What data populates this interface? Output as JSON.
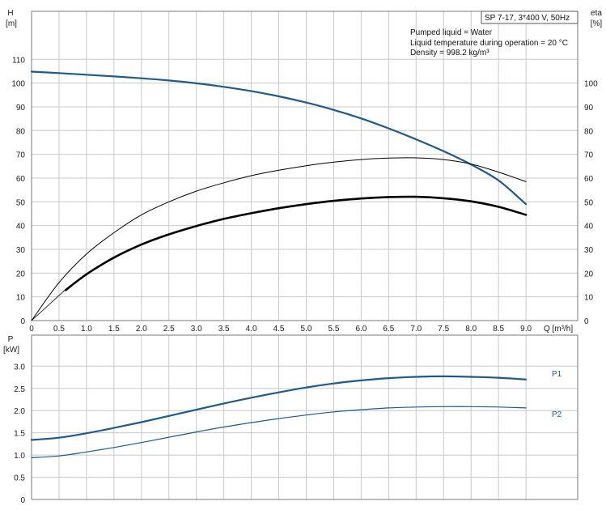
{
  "header": {
    "title": "SP 7-17, 3*400 V, 50Hz",
    "conditions": [
      "Pumped liquid = Water",
      "Liquid temperature during operation = 20 °C",
      "Density = 998.2 kg/m³"
    ]
  },
  "colors": {
    "head_curve": "#1f5a8c",
    "power_curve": "#1f5a8c",
    "efficiency_curve": "#000000",
    "grid": "#c8c8c8",
    "frame": "#7a7a7a"
  },
  "chart_data": [
    {
      "type": "line",
      "title": "",
      "xlabel": "Q [m³/h]",
      "ylabel_left": [
        "H",
        "[m]"
      ],
      "ylabel_right": [
        "eta",
        "[%]"
      ],
      "xlim": [
        0,
        9.5
      ],
      "ylim": [
        0,
        120
      ],
      "x_ticks": [
        "0",
        "0.5",
        "1.0",
        "1.5",
        "2.0",
        "2.5",
        "3.0",
        "3.5",
        "4.0",
        "4.5",
        "5.0",
        "5.5",
        "6.0",
        "6.5",
        "7.0",
        "7.5",
        "8.0",
        "8.5",
        "9.0"
      ],
      "y_ticks_left": [
        "0",
        "10",
        "20",
        "30",
        "40",
        "50",
        "60",
        "70",
        "80",
        "90",
        "100",
        "110"
      ],
      "y_ticks_right": [
        "0",
        "10",
        "20",
        "30",
        "40",
        "50",
        "60",
        "70",
        "80",
        "90",
        "100"
      ],
      "grid": true,
      "series": [
        {
          "axis": "left",
          "style": "head",
          "x": [
            0,
            0.5,
            1.0,
            1.5,
            2.0,
            2.5,
            3.0,
            3.5,
            4.0,
            4.5,
            5.0,
            5.5,
            6.0,
            6.5,
            7.0,
            7.5,
            8.0,
            8.5,
            9.0
          ],
          "y": [
            104.8,
            104.2,
            103.5,
            102.8,
            102.0,
            101.1,
            99.9,
            98.4,
            96.6,
            94.4,
            91.8,
            88.7,
            85.1,
            80.9,
            76.3,
            71.3,
            65.7,
            59.0,
            49.0
          ]
        },
        {
          "axis": "right",
          "style": "eff-thin",
          "x": [
            0,
            0.5,
            1.0,
            1.5,
            2.0,
            2.5,
            3.0,
            3.5,
            4.0,
            4.5,
            5.0,
            5.5,
            6.0,
            6.5,
            7.0,
            7.5,
            8.0,
            8.5,
            9.0
          ],
          "y": [
            0,
            16,
            28,
            37,
            44.5,
            50,
            54.5,
            58,
            61,
            63.3,
            65.2,
            66.7,
            67.8,
            68.4,
            68.5,
            67.8,
            65.9,
            62.5,
            58.5
          ]
        },
        {
          "axis": "right",
          "style": "eff-thick",
          "x": [
            0.62,
            1.0,
            1.5,
            2.0,
            2.5,
            3.0,
            3.5,
            4.0,
            4.5,
            5.0,
            5.5,
            6.0,
            6.5,
            7.0,
            7.5,
            8.0,
            8.5,
            9.0
          ],
          "y": [
            12.8,
            19.5,
            26.5,
            32,
            36.3,
            39.8,
            42.8,
            45.2,
            47.3,
            49,
            50.4,
            51.4,
            52,
            52.1,
            51.5,
            50.2,
            47.9,
            44.5
          ]
        },
        {
          "axis": "left",
          "style": "guide",
          "x": [
            0,
            0.62
          ],
          "y": [
            0,
            13.1
          ]
        }
      ]
    },
    {
      "type": "line",
      "title": "",
      "xlabel": "",
      "ylabel_left": [
        "P",
        "[kW]"
      ],
      "xlim": [
        0,
        9.5
      ],
      "ylim": [
        0,
        3.0
      ],
      "y_ticks_left": [
        "0",
        "0.5",
        "1.0",
        "1.5",
        "2.0",
        "2.5",
        "3.0"
      ],
      "grid": true,
      "series": [
        {
          "name": "P1",
          "style": "power-thick",
          "x": [
            0,
            0.5,
            1.0,
            1.5,
            2.0,
            2.5,
            3.0,
            3.5,
            4.0,
            4.5,
            5.0,
            5.5,
            6.0,
            6.5,
            7.0,
            7.5,
            8.0,
            8.5,
            9.0
          ],
          "y": [
            1.34,
            1.39,
            1.49,
            1.61,
            1.74,
            1.88,
            2.02,
            2.16,
            2.29,
            2.41,
            2.52,
            2.61,
            2.68,
            2.73,
            2.76,
            2.77,
            2.76,
            2.74,
            2.7
          ]
        },
        {
          "name": "P2",
          "style": "power-thin",
          "x": [
            0,
            0.5,
            1.0,
            1.5,
            2.0,
            2.5,
            3.0,
            3.5,
            4.0,
            4.5,
            5.0,
            5.5,
            6.0,
            6.5,
            7.0,
            7.5,
            8.0,
            8.5,
            9.0
          ],
          "y": [
            0.94,
            0.98,
            1.07,
            1.17,
            1.28,
            1.4,
            1.52,
            1.63,
            1.73,
            1.82,
            1.9,
            1.97,
            2.02,
            2.06,
            2.08,
            2.09,
            2.09,
            2.08,
            2.06
          ]
        }
      ]
    }
  ]
}
